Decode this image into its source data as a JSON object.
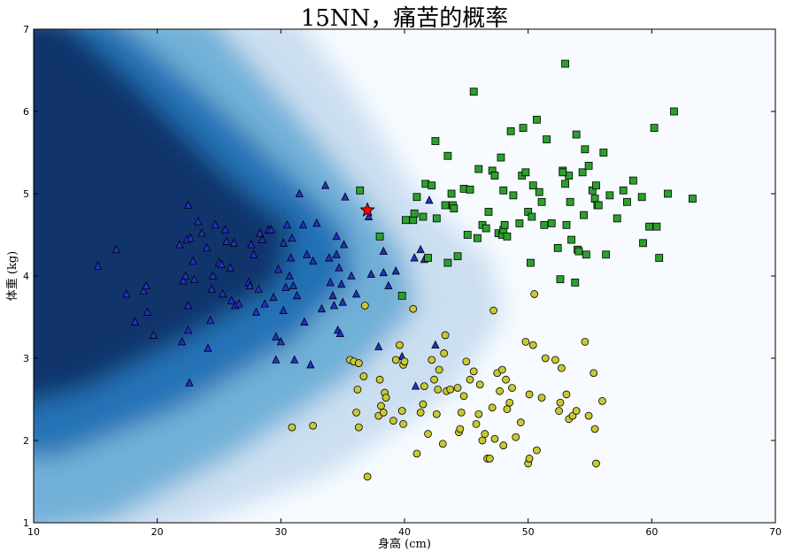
{
  "chart_data": {
    "type": "scatter",
    "title": "15NN，痛苦的概率",
    "xlabel": "身高 (cm)",
    "ylabel": "体重 (kg)",
    "xlim": [
      10,
      70
    ],
    "ylim": [
      1,
      7
    ],
    "xticks": [
      "10",
      "20",
      "30",
      "40",
      "50",
      "60",
      "70"
    ],
    "yticks": [
      "1",
      "2",
      "3",
      "4",
      "5",
      "6",
      "7"
    ],
    "grid": false,
    "background": "probability heatmap (blue = high probability)",
    "colors": {
      "heat_high": "#08306b",
      "heat_mid": "#4292c6",
      "heat_low": "#f7fbff",
      "triangles": "#2430c8",
      "squares": "#2ca02c",
      "circles": "#c8c832",
      "star": "#ff0000"
    },
    "series": [
      {
        "marker": "triangle",
        "color": "#2430c8",
        "points": [
          [
            15.2,
            4.12
          ],
          [
            16.7,
            4.32
          ],
          [
            17.5,
            3.78
          ],
          [
            18.2,
            3.44
          ],
          [
            18.9,
            3.82
          ],
          [
            19.1,
            3.88
          ],
          [
            19.2,
            3.56
          ],
          [
            19.7,
            3.28
          ],
          [
            21.8,
            4.38
          ],
          [
            22.0,
            3.2
          ],
          [
            22.1,
            3.94
          ],
          [
            22.3,
            4.0
          ],
          [
            22.4,
            4.44
          ],
          [
            22.5,
            4.86
          ],
          [
            22.5,
            3.64
          ],
          [
            22.5,
            3.34
          ],
          [
            22.6,
            2.7
          ],
          [
            22.7,
            4.46
          ],
          [
            22.9,
            4.18
          ],
          [
            23.0,
            3.96
          ],
          [
            23.3,
            4.66
          ],
          [
            23.6,
            4.52
          ],
          [
            24.0,
            4.34
          ],
          [
            24.1,
            3.12
          ],
          [
            24.3,
            3.46
          ],
          [
            24.4,
            3.84
          ],
          [
            24.5,
            4.0
          ],
          [
            24.7,
            4.62
          ],
          [
            25.0,
            4.16
          ],
          [
            25.2,
            4.14
          ],
          [
            25.3,
            3.78
          ],
          [
            25.5,
            4.56
          ],
          [
            25.6,
            4.42
          ],
          [
            25.9,
            4.1
          ],
          [
            26.0,
            3.7
          ],
          [
            26.2,
            4.4
          ],
          [
            26.3,
            3.64
          ],
          [
            26.6,
            3.66
          ],
          [
            27.4,
            3.92
          ],
          [
            27.5,
            3.88
          ],
          [
            27.6,
            4.38
          ],
          [
            27.8,
            4.26
          ],
          [
            28.0,
            3.56
          ],
          [
            28.2,
            3.84
          ],
          [
            28.3,
            4.52
          ],
          [
            28.5,
            4.44
          ],
          [
            28.7,
            3.66
          ],
          [
            29.0,
            4.56
          ],
          [
            29.2,
            4.56
          ],
          [
            29.4,
            3.74
          ],
          [
            29.6,
            3.26
          ],
          [
            29.6,
            2.98
          ],
          [
            29.8,
            4.08
          ],
          [
            30.0,
            3.2
          ],
          [
            30.2,
            4.4
          ],
          [
            30.2,
            3.58
          ],
          [
            30.4,
            3.86
          ],
          [
            30.5,
            4.62
          ],
          [
            30.7,
            4.0
          ],
          [
            30.8,
            4.22
          ],
          [
            30.9,
            4.46
          ],
          [
            31.0,
            3.88
          ],
          [
            31.1,
            2.98
          ],
          [
            31.3,
            3.76
          ],
          [
            31.5,
            5.0
          ],
          [
            31.8,
            4.62
          ],
          [
            31.9,
            3.44
          ],
          [
            32.1,
            4.26
          ],
          [
            32.4,
            2.92
          ],
          [
            32.6,
            4.18
          ],
          [
            32.9,
            4.64
          ],
          [
            33.3,
            3.6
          ],
          [
            33.6,
            5.1
          ],
          [
            33.9,
            4.22
          ],
          [
            34.0,
            3.92
          ],
          [
            34.2,
            3.76
          ],
          [
            34.3,
            3.64
          ],
          [
            34.5,
            4.48
          ],
          [
            34.5,
            4.26
          ],
          [
            34.6,
            3.34
          ],
          [
            34.7,
            4.1
          ],
          [
            34.8,
            3.3
          ],
          [
            34.9,
            3.9
          ],
          [
            35.0,
            3.68
          ],
          [
            35.1,
            4.38
          ],
          [
            35.2,
            4.96
          ],
          [
            35.7,
            4.0
          ],
          [
            36.1,
            3.78
          ],
          [
            37.1,
            4.72
          ],
          [
            37.3,
            4.02
          ],
          [
            37.9,
            3.14
          ],
          [
            38.3,
            4.04
          ],
          [
            38.3,
            4.3
          ],
          [
            38.7,
            3.88
          ],
          [
            39.3,
            4.06
          ],
          [
            39.8,
            3.02
          ],
          [
            40.8,
            4.22
          ],
          [
            40.9,
            2.66
          ],
          [
            41.3,
            4.32
          ],
          [
            41.6,
            4.2
          ],
          [
            42.0,
            4.92
          ],
          [
            42.5,
            3.16
          ]
        ]
      },
      {
        "marker": "square",
        "color": "#2ca02c",
        "points": [
          [
            36.4,
            5.04
          ],
          [
            38.0,
            4.48
          ],
          [
            39.8,
            3.76
          ],
          [
            40.1,
            4.68
          ],
          [
            40.7,
            4.68
          ],
          [
            40.8,
            4.76
          ],
          [
            41.0,
            4.96
          ],
          [
            41.5,
            4.72
          ],
          [
            41.7,
            5.12
          ],
          [
            41.9,
            4.22
          ],
          [
            42.2,
            5.1
          ],
          [
            42.5,
            5.64
          ],
          [
            42.6,
            4.7
          ],
          [
            43.3,
            4.86
          ],
          [
            43.5,
            4.16
          ],
          [
            43.5,
            5.46
          ],
          [
            43.8,
            5.0
          ],
          [
            43.9,
            4.86
          ],
          [
            44.0,
            4.82
          ],
          [
            44.3,
            4.24
          ],
          [
            44.8,
            5.06
          ],
          [
            45.1,
            4.5
          ],
          [
            45.3,
            5.05
          ],
          [
            45.6,
            6.24
          ],
          [
            45.9,
            4.46
          ],
          [
            46.0,
            5.3
          ],
          [
            46.3,
            4.62
          ],
          [
            46.6,
            4.58
          ],
          [
            46.8,
            4.78
          ],
          [
            47.1,
            5.28
          ],
          [
            47.3,
            5.22
          ],
          [
            47.6,
            4.52
          ],
          [
            47.8,
            5.44
          ],
          [
            47.9,
            4.5
          ],
          [
            48.0,
            4.56
          ],
          [
            48.0,
            5.04
          ],
          [
            48.1,
            4.62
          ],
          [
            48.3,
            4.48
          ],
          [
            48.6,
            5.76
          ],
          [
            48.8,
            4.98
          ],
          [
            49.3,
            4.64
          ],
          [
            49.5,
            5.22
          ],
          [
            49.6,
            5.8
          ],
          [
            49.8,
            5.26
          ],
          [
            50.0,
            4.78
          ],
          [
            50.2,
            4.16
          ],
          [
            50.3,
            4.72
          ],
          [
            50.4,
            5.1
          ],
          [
            50.7,
            5.9
          ],
          [
            50.9,
            5.02
          ],
          [
            51.1,
            4.9
          ],
          [
            51.3,
            4.62
          ],
          [
            51.5,
            5.66
          ],
          [
            51.9,
            4.64
          ],
          [
            52.4,
            4.34
          ],
          [
            52.6,
            3.96
          ],
          [
            52.8,
            5.28
          ],
          [
            53.0,
            5.12
          ],
          [
            53.1,
            4.62
          ],
          [
            53.3,
            5.22
          ],
          [
            53.4,
            4.9
          ],
          [
            53.5,
            4.44
          ],
          [
            53.8,
            3.92
          ],
          [
            54.0,
            4.32
          ],
          [
            54.1,
            4.3
          ],
          [
            54.4,
            5.26
          ],
          [
            54.5,
            4.74
          ],
          [
            54.6,
            5.54
          ],
          [
            54.7,
            4.26
          ],
          [
            54.9,
            5.34
          ],
          [
            55.2,
            5.04
          ],
          [
            55.4,
            4.94
          ],
          [
            55.5,
            5.1
          ],
          [
            55.6,
            4.86
          ],
          [
            55.7,
            4.86
          ],
          [
            56.1,
            5.5
          ],
          [
            56.3,
            4.26
          ],
          [
            56.6,
            4.98
          ],
          [
            57.2,
            4.7
          ],
          [
            57.7,
            5.04
          ],
          [
            58.0,
            4.9
          ],
          [
            58.5,
            5.16
          ],
          [
            59.2,
            4.96
          ],
          [
            59.3,
            4.4
          ],
          [
            59.8,
            4.6
          ],
          [
            60.2,
            5.8
          ],
          [
            60.4,
            4.6
          ],
          [
            60.6,
            4.22
          ],
          [
            61.3,
            5.0
          ],
          [
            61.8,
            6.0
          ],
          [
            63.3,
            4.94
          ],
          [
            53.0,
            6.58
          ],
          [
            53.9,
            5.72
          ],
          [
            52.8,
            5.26
          ]
        ]
      },
      {
        "marker": "circle",
        "color": "#c8c832",
        "points": [
          [
            30.9,
            2.16
          ],
          [
            32.6,
            2.18
          ],
          [
            35.6,
            2.98
          ],
          [
            35.9,
            2.96
          ],
          [
            36.1,
            2.34
          ],
          [
            36.2,
            2.62
          ],
          [
            36.3,
            2.16
          ],
          [
            36.3,
            2.94
          ],
          [
            36.7,
            2.78
          ],
          [
            36.8,
            3.64
          ],
          [
            37.0,
            1.56
          ],
          [
            37.9,
            2.3
          ],
          [
            38.0,
            2.74
          ],
          [
            38.1,
            2.42
          ],
          [
            38.3,
            2.34
          ],
          [
            38.4,
            2.58
          ],
          [
            38.5,
            2.52
          ],
          [
            39.1,
            2.24
          ],
          [
            39.3,
            2.98
          ],
          [
            39.6,
            3.16
          ],
          [
            39.8,
            2.36
          ],
          [
            39.9,
            2.92
          ],
          [
            39.9,
            2.2
          ],
          [
            40.0,
            2.96
          ],
          [
            40.7,
            3.6
          ],
          [
            41.0,
            1.84
          ],
          [
            41.3,
            2.34
          ],
          [
            41.5,
            2.44
          ],
          [
            41.6,
            2.66
          ],
          [
            41.9,
            2.08
          ],
          [
            42.2,
            2.98
          ],
          [
            42.4,
            2.74
          ],
          [
            42.6,
            2.32
          ],
          [
            42.7,
            2.62
          ],
          [
            42.8,
            2.86
          ],
          [
            43.1,
            1.96
          ],
          [
            43.2,
            3.06
          ],
          [
            43.3,
            3.28
          ],
          [
            43.4,
            2.6
          ],
          [
            43.7,
            2.62
          ],
          [
            44.3,
            2.64
          ],
          [
            44.4,
            2.1
          ],
          [
            44.5,
            2.14
          ],
          [
            44.6,
            2.34
          ],
          [
            44.8,
            2.54
          ],
          [
            45.0,
            2.96
          ],
          [
            45.3,
            2.74
          ],
          [
            45.6,
            2.84
          ],
          [
            45.8,
            2.2
          ],
          [
            46.0,
            2.32
          ],
          [
            46.1,
            2.68
          ],
          [
            46.3,
            2.0
          ],
          [
            46.5,
            2.08
          ],
          [
            46.7,
            1.78
          ],
          [
            46.9,
            1.78
          ],
          [
            47.1,
            2.4
          ],
          [
            47.2,
            3.58
          ],
          [
            47.3,
            2.02
          ],
          [
            47.5,
            2.82
          ],
          [
            47.7,
            2.6
          ],
          [
            47.9,
            2.86
          ],
          [
            48.0,
            1.94
          ],
          [
            48.2,
            2.74
          ],
          [
            48.3,
            2.38
          ],
          [
            48.5,
            2.46
          ],
          [
            48.7,
            2.64
          ],
          [
            49.0,
            2.04
          ],
          [
            49.4,
            2.22
          ],
          [
            49.8,
            3.2
          ],
          [
            50.0,
            1.72
          ],
          [
            50.1,
            1.78
          ],
          [
            50.1,
            2.56
          ],
          [
            50.4,
            3.16
          ],
          [
            50.5,
            3.78
          ],
          [
            50.7,
            1.88
          ],
          [
            51.1,
            2.52
          ],
          [
            51.4,
            3.0
          ],
          [
            52.2,
            2.98
          ],
          [
            52.5,
            2.36
          ],
          [
            52.6,
            2.46
          ],
          [
            52.7,
            2.88
          ],
          [
            53.1,
            2.56
          ],
          [
            53.3,
            2.26
          ],
          [
            53.6,
            2.3
          ],
          [
            53.9,
            2.36
          ],
          [
            54.6,
            3.2
          ],
          [
            54.9,
            2.3
          ],
          [
            55.3,
            2.82
          ],
          [
            55.4,
            2.14
          ],
          [
            55.5,
            1.72
          ],
          [
            56.0,
            2.48
          ]
        ]
      },
      {
        "marker": "star",
        "color": "#ff0000",
        "points": [
          [
            37.0,
            4.8
          ]
        ]
      }
    ]
  }
}
